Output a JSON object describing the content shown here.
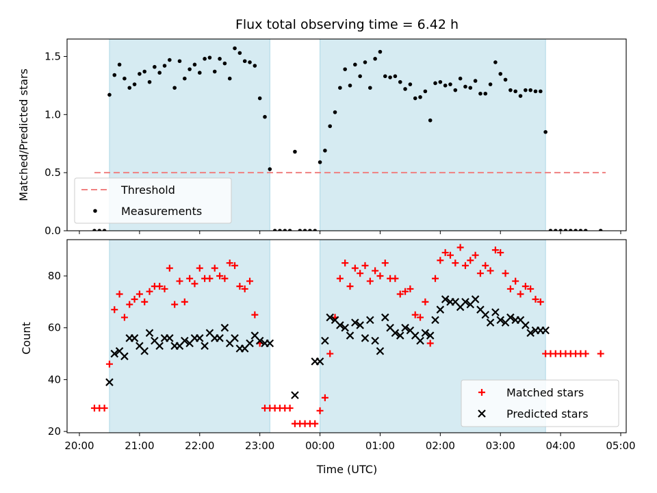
{
  "chart_data": [
    {
      "type": "scatter",
      "title": "Flux total observing time = 6.42 h",
      "ylabel": "Matched/Predicted stars",
      "ylim": [
        0,
        1.65
      ],
      "yticks": [
        "0.0",
        "0.5",
        "1.0",
        "1.5"
      ],
      "shaded_spans": [
        [
          "20:30",
          "23:10"
        ],
        [
          "00:00",
          "03:45"
        ]
      ],
      "legend_position": "lower-left",
      "threshold": {
        "name": "Threshold",
        "value": 0.5,
        "x_start": "20:15",
        "x_end": "04:45",
        "color": "#f08080"
      },
      "series": [
        {
          "name": "Measurements",
          "color": "#000000",
          "x": [
            "20:15",
            "20:20",
            "20:25",
            "20:30",
            "20:35",
            "20:40",
            "20:45",
            "20:50",
            "20:55",
            "21:00",
            "21:05",
            "21:10",
            "21:15",
            "21:20",
            "21:25",
            "21:30",
            "21:35",
            "21:40",
            "21:45",
            "21:50",
            "21:55",
            "22:00",
            "22:05",
            "22:10",
            "22:15",
            "22:20",
            "22:25",
            "22:30",
            "22:35",
            "22:40",
            "22:45",
            "22:50",
            "22:55",
            "23:00",
            "23:05",
            "23:10",
            "23:15",
            "23:20",
            "23:25",
            "23:30",
            "23:35",
            "23:40",
            "23:45",
            "23:50",
            "23:55",
            "00:00",
            "00:05",
            "00:10",
            "00:15",
            "00:20",
            "00:25",
            "00:30",
            "00:35",
            "00:40",
            "00:45",
            "00:50",
            "00:55",
            "01:00",
            "01:05",
            "01:10",
            "01:15",
            "01:20",
            "01:25",
            "01:30",
            "01:35",
            "01:40",
            "01:45",
            "01:50",
            "01:55",
            "02:00",
            "02:05",
            "02:10",
            "02:15",
            "02:20",
            "02:25",
            "02:30",
            "02:35",
            "02:40",
            "02:45",
            "02:50",
            "02:55",
            "03:00",
            "03:05",
            "03:10",
            "03:15",
            "03:20",
            "03:25",
            "03:30",
            "03:35",
            "03:40",
            "03:45",
            "03:50",
            "03:55",
            "04:00",
            "04:05",
            "04:10",
            "04:15",
            "04:20",
            "04:25",
            "04:40"
          ],
          "y": [
            0,
            0,
            0,
            1.17,
            1.34,
            1.43,
            1.31,
            1.23,
            1.26,
            1.35,
            1.37,
            1.28,
            1.41,
            1.36,
            1.42,
            1.47,
            1.23,
            1.46,
            1.31,
            1.39,
            1.43,
            1.36,
            1.48,
            1.49,
            1.37,
            1.48,
            1.44,
            1.31,
            1.57,
            1.53,
            1.46,
            1.45,
            1.42,
            1.14,
            0.98,
            0.53,
            0,
            0,
            0,
            0,
            0.68,
            0,
            0,
            0,
            0,
            0.59,
            0.69,
            0.9,
            1.02,
            1.23,
            1.39,
            1.25,
            1.43,
            1.33,
            1.45,
            1.23,
            1.48,
            1.54,
            1.33,
            1.32,
            1.33,
            1.28,
            1.22,
            1.26,
            1.14,
            1.15,
            1.2,
            0.95,
            1.27,
            1.28,
            1.25,
            1.26,
            1.21,
            1.31,
            1.24,
            1.23,
            1.29,
            1.18,
            1.18,
            1.26,
            1.45,
            1.35,
            1.3,
            1.21,
            1.2,
            1.16,
            1.21,
            1.21,
            1.2,
            1.2,
            0.85,
            0,
            0,
            0,
            0,
            0,
            0,
            0,
            0,
            0
          ]
        }
      ]
    },
    {
      "type": "scatter",
      "xlabel": "Time (UTC)",
      "ylabel": "Count",
      "ylim": [
        19.5,
        94
      ],
      "yticks": [
        "20",
        "40",
        "60",
        "80"
      ],
      "xticks": [
        "20:00",
        "21:00",
        "22:00",
        "23:00",
        "00:00",
        "01:00",
        "02:00",
        "03:00",
        "04:00",
        "05:00"
      ],
      "shaded_spans": [
        [
          "20:30",
          "23:10"
        ],
        [
          "00:00",
          "03:45"
        ]
      ],
      "legend_position": "lower-right",
      "series": [
        {
          "name": "Matched stars",
          "marker": "+",
          "color": "#ff0000",
          "x": [
            "20:15",
            "20:20",
            "20:25",
            "20:30",
            "20:35",
            "20:40",
            "20:45",
            "20:50",
            "20:55",
            "21:00",
            "21:05",
            "21:10",
            "21:15",
            "21:20",
            "21:25",
            "21:30",
            "21:35",
            "21:40",
            "21:45",
            "21:50",
            "21:55",
            "22:00",
            "22:05",
            "22:10",
            "22:15",
            "22:20",
            "22:25",
            "22:30",
            "22:35",
            "22:40",
            "22:45",
            "22:50",
            "22:55",
            "23:00",
            "23:05",
            "23:10",
            "23:15",
            "23:20",
            "23:25",
            "23:30",
            "23:35",
            "23:40",
            "23:45",
            "23:50",
            "23:55",
            "00:00",
            "00:05",
            "00:10",
            "00:15",
            "00:20",
            "00:25",
            "00:30",
            "00:35",
            "00:40",
            "00:45",
            "00:50",
            "00:55",
            "01:00",
            "01:05",
            "01:10",
            "01:15",
            "01:20",
            "01:25",
            "01:30",
            "01:35",
            "01:40",
            "01:45",
            "01:50",
            "01:55",
            "02:00",
            "02:05",
            "02:10",
            "02:15",
            "02:20",
            "02:25",
            "02:30",
            "02:35",
            "02:40",
            "02:45",
            "02:50",
            "02:55",
            "03:00",
            "03:05",
            "03:10",
            "03:15",
            "03:20",
            "03:25",
            "03:30",
            "03:35",
            "03:40",
            "03:45",
            "03:50",
            "03:55",
            "04:00",
            "04:05",
            "04:10",
            "04:15",
            "04:20",
            "04:25",
            "04:40"
          ],
          "y": [
            29,
            29,
            29,
            46,
            67,
            73,
            64,
            69,
            71,
            73,
            70,
            74,
            76,
            76,
            75,
            83,
            69,
            78,
            70,
            79,
            77,
            83,
            79,
            79,
            83,
            80,
            79,
            85,
            84,
            76,
            75,
            78,
            65,
            54,
            29,
            29,
            29,
            29,
            29,
            29,
            23,
            23,
            23,
            23,
            23,
            28,
            33,
            50,
            64,
            79,
            85,
            76,
            83,
            81,
            84,
            78,
            82,
            80,
            85,
            79,
            79,
            73,
            74,
            75,
            65,
            64,
            70,
            54,
            79,
            86,
            89,
            88,
            85,
            91,
            84,
            86,
            88,
            81,
            84,
            82,
            90,
            89,
            81,
            75,
            78,
            73,
            76,
            75,
            71,
            70,
            50,
            50,
            50,
            50,
            50,
            50,
            50,
            50,
            50,
            50
          ]
        },
        {
          "name": "Predicted stars",
          "marker": "x",
          "color": "#000000",
          "x": [
            "20:30",
            "20:35",
            "20:40",
            "20:45",
            "20:50",
            "20:55",
            "21:00",
            "21:05",
            "21:10",
            "21:15",
            "21:20",
            "21:25",
            "21:30",
            "21:35",
            "21:40",
            "21:45",
            "21:50",
            "21:55",
            "22:00",
            "22:05",
            "22:10",
            "22:15",
            "22:20",
            "22:25",
            "22:30",
            "22:35",
            "22:40",
            "22:45",
            "22:50",
            "22:55",
            "23:00",
            "23:05",
            "23:10",
            "23:35",
            "23:55",
            "00:00",
            "00:05",
            "00:10",
            "00:15",
            "00:20",
            "00:25",
            "00:30",
            "00:35",
            "00:40",
            "00:45",
            "00:50",
            "00:55",
            "01:00",
            "01:05",
            "01:10",
            "01:15",
            "01:20",
            "01:25",
            "01:30",
            "01:35",
            "01:40",
            "01:45",
            "01:50",
            "01:55",
            "02:00",
            "02:05",
            "02:10",
            "02:15",
            "02:20",
            "02:25",
            "02:30",
            "02:35",
            "02:40",
            "02:45",
            "02:50",
            "02:55",
            "03:00",
            "03:05",
            "03:10",
            "03:15",
            "03:20",
            "03:25",
            "03:30",
            "03:35",
            "03:40",
            "03:45"
          ],
          "y": [
            39,
            50,
            51,
            49,
            56,
            56,
            53,
            51,
            58,
            55,
            53,
            56,
            56,
            53,
            53,
            55,
            54,
            56,
            56,
            53,
            58,
            56,
            56,
            60,
            54,
            56,
            52,
            52,
            54,
            57,
            55,
            54,
            54,
            34,
            47,
            47,
            55,
            64,
            63,
            61,
            60,
            57,
            62,
            61,
            56,
            63,
            55,
            51,
            64,
            60,
            58,
            57,
            60,
            59,
            57,
            55,
            58,
            57,
            63,
            67,
            71,
            70,
            70,
            68,
            70,
            69,
            71,
            67,
            65,
            62,
            66,
            63,
            62,
            64,
            63,
            63,
            61,
            58,
            59,
            59,
            59
          ]
        }
      ]
    }
  ]
}
